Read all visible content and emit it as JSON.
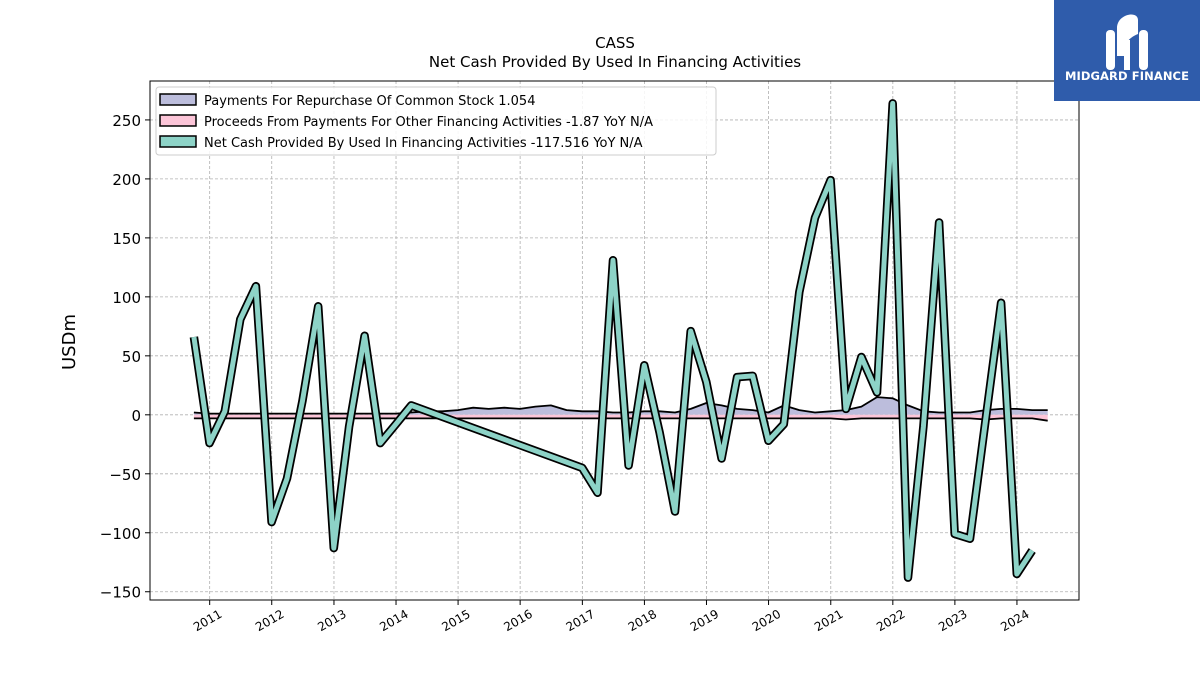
{
  "brand": {
    "name": "MIDGARD FINANCE",
    "color": "#2f5cab"
  },
  "chart_data": {
    "type": "line",
    "title": "CASS",
    "subtitle": "Net Cash Provided By Used In Financing Activities",
    "ylabel": "USDm",
    "xlabel": "",
    "ylim": [
      -157,
      283
    ],
    "xlim": [
      "2010-01-15",
      "2024-12-31"
    ],
    "yticks": [
      -150,
      -100,
      -50,
      0,
      50,
      100,
      150,
      200,
      250
    ],
    "xtick_labels": [
      "2011",
      "2012",
      "2013",
      "2014",
      "2015",
      "2016",
      "2017",
      "2018",
      "2019",
      "2020",
      "2021",
      "2022",
      "2023",
      "2024"
    ],
    "grid": true,
    "legend_position": "top-left",
    "series": [
      {
        "name": "Payments For Repurchase Of Common Stock",
        "legend_suffix": "1.054",
        "color": "#bcbddc",
        "points": [
          [
            "2010-09-30",
            2
          ],
          [
            "2010-12-31",
            1
          ],
          [
            "2011-03-31",
            1
          ],
          [
            "2011-06-30",
            1
          ],
          [
            "2011-09-30",
            1
          ],
          [
            "2011-12-31",
            1
          ],
          [
            "2012-03-31",
            1
          ],
          [
            "2012-06-30",
            1
          ],
          [
            "2012-09-30",
            1
          ],
          [
            "2012-12-31",
            1
          ],
          [
            "2013-03-31",
            1
          ],
          [
            "2013-06-30",
            1
          ],
          [
            "2013-09-30",
            1
          ],
          [
            "2013-12-31",
            1
          ],
          [
            "2014-03-31",
            2
          ],
          [
            "2014-06-30",
            3
          ],
          [
            "2014-09-30",
            3
          ],
          [
            "2014-12-31",
            4
          ],
          [
            "2015-03-31",
            6
          ],
          [
            "2015-06-30",
            5
          ],
          [
            "2015-09-30",
            6
          ],
          [
            "2015-12-31",
            5
          ],
          [
            "2016-03-31",
            7
          ],
          [
            "2016-06-30",
            8
          ],
          [
            "2016-09-30",
            4
          ],
          [
            "2016-12-31",
            3
          ],
          [
            "2017-03-31",
            3
          ],
          [
            "2017-06-30",
            2
          ],
          [
            "2017-09-30",
            2
          ],
          [
            "2017-12-31",
            3
          ],
          [
            "2018-03-31",
            3
          ],
          [
            "2018-06-30",
            2
          ],
          [
            "2018-09-30",
            5
          ],
          [
            "2018-12-31",
            10
          ],
          [
            "2019-03-31",
            8
          ],
          [
            "2019-06-30",
            5
          ],
          [
            "2019-09-30",
            4
          ],
          [
            "2019-12-31",
            2
          ],
          [
            "2020-03-31",
            8
          ],
          [
            "2020-06-30",
            4
          ],
          [
            "2020-09-30",
            2
          ],
          [
            "2020-12-31",
            3
          ],
          [
            "2021-03-31",
            4
          ],
          [
            "2021-06-30",
            7
          ],
          [
            "2021-09-30",
            15
          ],
          [
            "2021-12-31",
            14
          ],
          [
            "2022-03-31",
            8
          ],
          [
            "2022-06-30",
            3
          ],
          [
            "2022-09-30",
            2
          ],
          [
            "2022-12-31",
            2
          ],
          [
            "2023-03-31",
            2
          ],
          [
            "2023-06-30",
            4
          ],
          [
            "2023-09-30",
            5
          ],
          [
            "2023-12-31",
            5
          ],
          [
            "2024-03-31",
            4
          ],
          [
            "2024-06-30",
            4
          ]
        ]
      },
      {
        "name": "Proceeds From Payments For Other Financing Activities",
        "legend_suffix": "-1.87 YoY N/A",
        "color": "#fcc5d8",
        "points": [
          [
            "2010-09-30",
            -3
          ],
          [
            "2010-12-31",
            -3
          ],
          [
            "2011-03-31",
            -3
          ],
          [
            "2011-06-30",
            -3
          ],
          [
            "2011-09-30",
            -3
          ],
          [
            "2011-12-31",
            -3
          ],
          [
            "2012-03-31",
            -3
          ],
          [
            "2012-06-30",
            -3
          ],
          [
            "2012-09-30",
            -3
          ],
          [
            "2012-12-31",
            -3
          ],
          [
            "2013-03-31",
            -3
          ],
          [
            "2013-06-30",
            -3
          ],
          [
            "2013-09-30",
            -3
          ],
          [
            "2013-12-31",
            -3
          ],
          [
            "2014-03-31",
            -3
          ],
          [
            "2014-06-30",
            -3
          ],
          [
            "2014-09-30",
            -3
          ],
          [
            "2014-12-31",
            -3
          ],
          [
            "2015-03-31",
            -3
          ],
          [
            "2015-06-30",
            -3
          ],
          [
            "2015-09-30",
            -3
          ],
          [
            "2015-12-31",
            -3
          ],
          [
            "2016-03-31",
            -3
          ],
          [
            "2016-06-30",
            -3
          ],
          [
            "2016-09-30",
            -3
          ],
          [
            "2016-12-31",
            -3
          ],
          [
            "2017-03-31",
            -3
          ],
          [
            "2017-06-30",
            -3
          ],
          [
            "2017-09-30",
            -3
          ],
          [
            "2017-12-31",
            -3
          ],
          [
            "2018-03-31",
            -3
          ],
          [
            "2018-06-30",
            -3
          ],
          [
            "2018-09-30",
            -3
          ],
          [
            "2018-12-31",
            -3
          ],
          [
            "2019-03-31",
            -3
          ],
          [
            "2019-06-30",
            -3
          ],
          [
            "2019-09-30",
            -3
          ],
          [
            "2019-12-31",
            -3
          ],
          [
            "2020-03-31",
            -3
          ],
          [
            "2020-06-30",
            -3
          ],
          [
            "2020-09-30",
            -3
          ],
          [
            "2020-12-31",
            -3
          ],
          [
            "2021-03-31",
            -4
          ],
          [
            "2021-06-30",
            -3
          ],
          [
            "2021-09-30",
            -3
          ],
          [
            "2021-12-31",
            -3
          ],
          [
            "2022-03-31",
            -3
          ],
          [
            "2022-06-30",
            -3
          ],
          [
            "2022-09-30",
            -3
          ],
          [
            "2022-12-31",
            -3
          ],
          [
            "2023-03-31",
            -3
          ],
          [
            "2023-06-30",
            -4
          ],
          [
            "2023-09-30",
            -3
          ],
          [
            "2023-12-31",
            -3
          ],
          [
            "2024-03-31",
            -3
          ],
          [
            "2024-06-30",
            -5
          ]
        ]
      },
      {
        "name": "Net Cash Provided By Used In Financing Activities",
        "legend_suffix": "-117.516 YoY N/A",
        "color": "#8dd3c7",
        "points": [
          [
            "2010-09-30",
            66
          ],
          [
            "2010-12-31",
            -24
          ],
          [
            "2011-03-31",
            3
          ],
          [
            "2011-06-30",
            81
          ],
          [
            "2011-09-30",
            109
          ],
          [
            "2011-12-31",
            -91
          ],
          [
            "2012-03-31",
            -54
          ],
          [
            "2012-06-30",
            12
          ],
          [
            "2012-09-30",
            92
          ],
          [
            "2012-12-31",
            -113
          ],
          [
            "2013-03-31",
            -10
          ],
          [
            "2013-06-30",
            67
          ],
          [
            "2013-09-30",
            -24
          ],
          [
            "2013-12-31",
            -8
          ],
          [
            "2014-03-31",
            8
          ],
          [
            "2016-12-31",
            -45
          ],
          [
            "2017-03-31",
            -66
          ],
          [
            "2017-06-30",
            131
          ],
          [
            "2017-09-30",
            -43
          ],
          [
            "2017-12-31",
            42
          ],
          [
            "2018-03-31",
            -15
          ],
          [
            "2018-06-30",
            -82
          ],
          [
            "2018-09-30",
            71
          ],
          [
            "2018-12-31",
            28
          ],
          [
            "2019-03-31",
            -37
          ],
          [
            "2019-06-30",
            32
          ],
          [
            "2019-09-30",
            33
          ],
          [
            "2019-12-31",
            -22
          ],
          [
            "2020-03-31",
            -8
          ],
          [
            "2020-06-30",
            104
          ],
          [
            "2020-09-30",
            167
          ],
          [
            "2020-12-31",
            199
          ],
          [
            "2021-03-31",
            5
          ],
          [
            "2021-06-30",
            49
          ],
          [
            "2021-09-30",
            19
          ],
          [
            "2021-12-31",
            264
          ],
          [
            "2022-03-31",
            -138
          ],
          [
            "2022-06-30",
            -10
          ],
          [
            "2022-09-30",
            163
          ],
          [
            "2022-12-31",
            -101
          ],
          [
            "2023-03-31",
            -105
          ],
          [
            "2023-06-30",
            -5
          ],
          [
            "2023-09-30",
            95
          ],
          [
            "2023-12-31",
            -135
          ],
          [
            "2024-03-31",
            -115
          ]
        ]
      }
    ]
  }
}
